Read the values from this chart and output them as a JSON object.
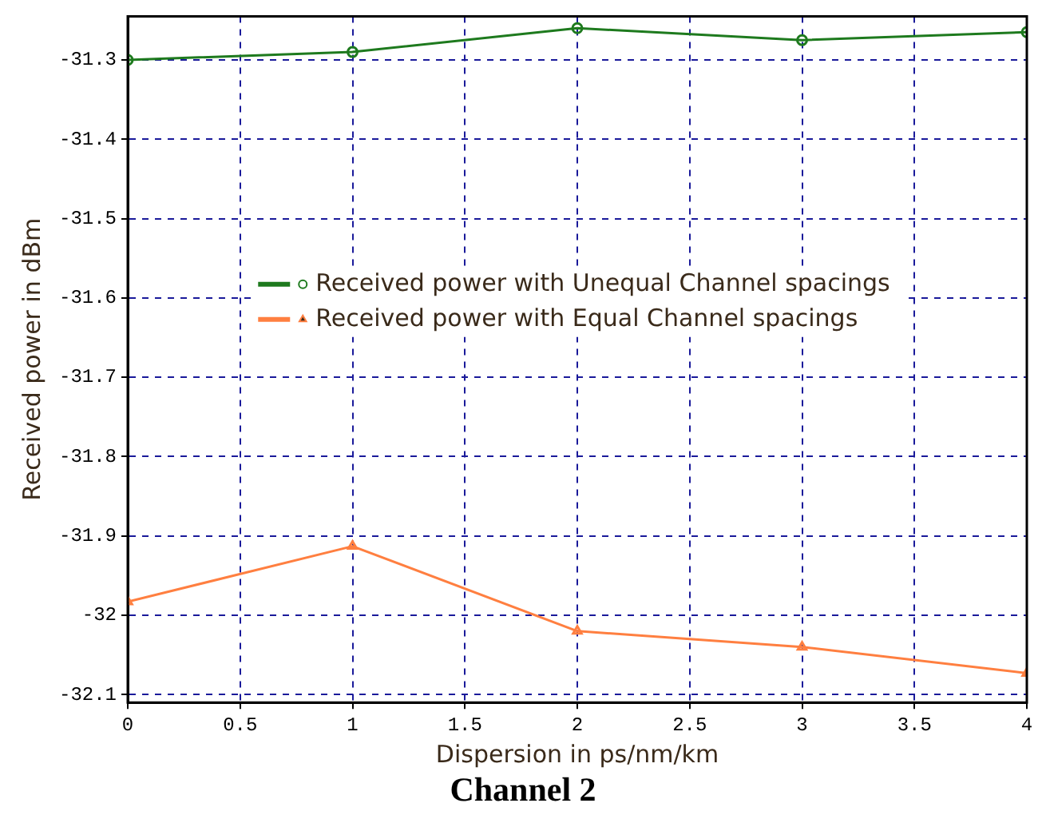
{
  "chart_data": {
    "type": "line",
    "title": "Channel 2",
    "xlabel": "Dispersion in ps/nm/km",
    "ylabel": "Received power in dBm",
    "x": [
      0,
      1,
      2,
      3,
      4
    ],
    "series": [
      {
        "name": "Received power with Unequal Channel spacings",
        "color": "#1e7a1e",
        "marker": "circle",
        "values": [
          -31.3,
          -31.29,
          -31.26,
          -31.275,
          -31.265
        ]
      },
      {
        "name": "Received power with Equal Channel spacings",
        "color": "#ff7f40",
        "marker": "triangle",
        "values": [
          -31.983,
          -31.913,
          -32.02,
          -32.04,
          -32.073
        ]
      }
    ],
    "xlim": [
      0,
      4
    ],
    "xticks": [
      0,
      0.5,
      1,
      1.5,
      2,
      2.5,
      3,
      3.5,
      4
    ],
    "ylim": [
      -32.11,
      -31.245
    ],
    "yticks": [
      -32.1,
      -32,
      -31.9,
      -31.8,
      -31.7,
      -31.6,
      -31.5,
      -31.4,
      -31.3
    ],
    "grid": true,
    "legend": "center",
    "line_style": "solid"
  }
}
